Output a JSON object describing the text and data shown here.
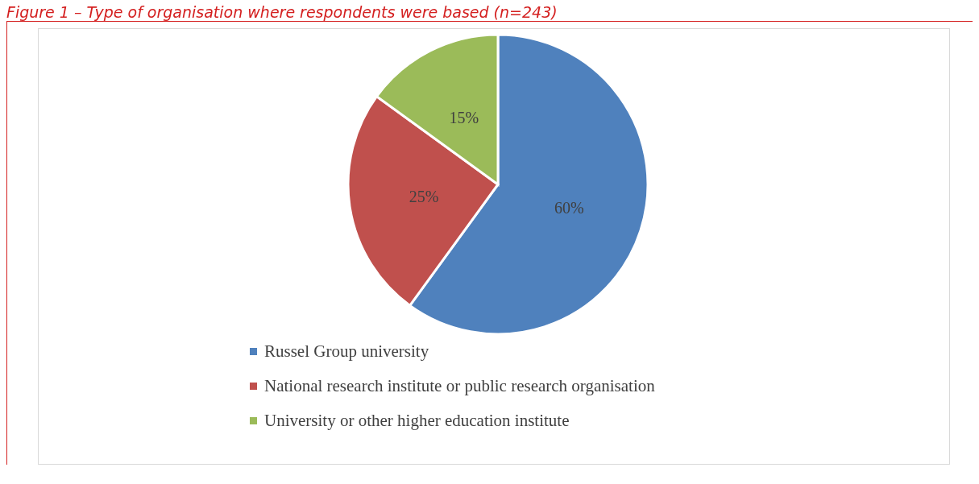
{
  "chart_data": {
    "type": "pie",
    "title": "Figure 1 – Type of organisation where respondents were based (n=243)",
    "categories": [
      "Russel Group university",
      "National research institute or public research organisation",
      "University or other higher education institute"
    ],
    "values": [
      60,
      25,
      15
    ],
    "colors": [
      "#4f81bd",
      "#c0504d",
      "#9bbb59"
    ],
    "value_labels": [
      "60%",
      "25%",
      "15%"
    ],
    "legend": "bottom"
  }
}
